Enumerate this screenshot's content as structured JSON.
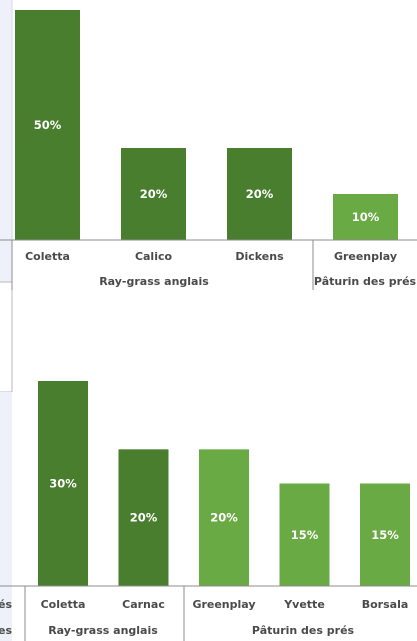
{
  "chart_data": [
    {
      "type": "bar",
      "categories": [
        "Coletta",
        "Calico",
        "Dickens",
        "Greenplay"
      ],
      "values": [
        50,
        20,
        20,
        10
      ],
      "value_labels": [
        "50%",
        "20%",
        "20%",
        "10%"
      ],
      "bar_colors": [
        "#4a7e2f",
        "#4a7e2f",
        "#4a7e2f",
        "#6aaa44"
      ],
      "groups": [
        {
          "label": "Ray-grass anglais",
          "categories": [
            "Coletta",
            "Calico",
            "Dickens"
          ]
        },
        {
          "label": "Pâturin des prés",
          "categories": [
            "Greenplay"
          ]
        }
      ],
      "ylim": [
        0,
        50
      ],
      "grid": false,
      "title": "",
      "xlabel": "",
      "ylabel": ""
    },
    {
      "type": "bar",
      "categories": [
        "Coletta",
        "Carnac",
        "Greenplay",
        "Yvette",
        "Borsala"
      ],
      "values": [
        30,
        20,
        20,
        15,
        15
      ],
      "value_labels": [
        "30%",
        "20%",
        "20%",
        "15%",
        "15%"
      ],
      "bar_colors": [
        "#4a7e2f",
        "#4a7e2f",
        "#6aaa44",
        "#6aaa44",
        "#6aaa44"
      ],
      "groups": [
        {
          "label": "Ray-grass anglais",
          "categories": [
            "Coletta",
            "Carnac"
          ]
        },
        {
          "label": "Pâturin des prés",
          "categories": [
            "Greenplay",
            "Yvette",
            "Borsala"
          ]
        }
      ],
      "ylim": [
        0,
        30
      ],
      "grid": false,
      "title": "",
      "xlabel": "",
      "ylabel": ""
    }
  ],
  "colors": {
    "ray_grass": "#4a7e2f",
    "paturin": "#6aaa44",
    "side_panel": "#eef1f9",
    "text": "#4a4a4a"
  },
  "left_fragments": {
    "row1": "és",
    "row2": "es"
  }
}
